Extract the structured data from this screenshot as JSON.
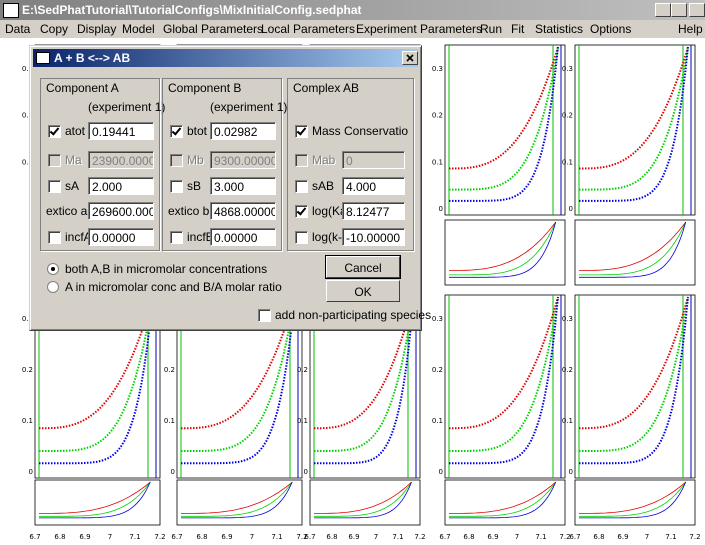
{
  "window": {
    "title": "E:\\SedPhatTutorial\\TutorialConfigs\\MixInitialConfig.sedphat",
    "menu": [
      "Data",
      "Copy",
      "Display",
      "Model",
      "Global Parameters",
      "Local Parameters",
      "Experiment Parameters",
      "Run",
      "Fit",
      "Statistics",
      "Options",
      "Help"
    ]
  },
  "plots": {
    "x_tick_labels": [
      "6.7",
      "6.8",
      "6.9",
      "7",
      "7.1",
      "7.2"
    ],
    "y_tick_labels": [
      "0.3",
      "0.2",
      "0.1",
      "0"
    ]
  },
  "dialog": {
    "title": "A + B <--> AB",
    "groups": [
      {
        "title": "Component A",
        "note": "(experiment 1)",
        "rows": [
          {
            "label": "atot",
            "value": "0.19441",
            "checkbox": true,
            "checked": true,
            "disabled": false
          },
          {
            "label": "Ma",
            "value": "23900.0000",
            "checkbox": true,
            "checked": false,
            "disabled": true
          },
          {
            "label": "sA",
            "value": "2.000",
            "checkbox": true,
            "checked": false,
            "disabled": false
          },
          {
            "label": "extico a",
            "value": "269600.000",
            "checkbox": false,
            "checked": false,
            "disabled": false
          },
          {
            "label": "incfA",
            "value": "0.00000",
            "checkbox": true,
            "checked": false,
            "disabled": false
          }
        ]
      },
      {
        "title": "Component B",
        "note": "(experiment 1)",
        "rows": [
          {
            "label": "btot",
            "value": "0.02982",
            "checkbox": true,
            "checked": true,
            "disabled": false
          },
          {
            "label": "Mb",
            "value": "9300.00000",
            "checkbox": true,
            "checked": false,
            "disabled": true
          },
          {
            "label": "sB",
            "value": "3.000",
            "checkbox": true,
            "checked": false,
            "disabled": false
          },
          {
            "label": "extico b",
            "value": "4868.00000",
            "checkbox": false,
            "checked": false,
            "disabled": false
          },
          {
            "label": "incfB",
            "value": "0.00000",
            "checkbox": true,
            "checked": false,
            "disabled": false
          }
        ]
      },
      {
        "title": "Complex AB",
        "rows": [
          {
            "label": "Mass Conservatio",
            "checkbox": true,
            "checked": true,
            "disabled": false
          },
          {
            "label": "Mab",
            "value": "0",
            "checkbox": true,
            "checked": false,
            "disabled": true
          },
          {
            "label": "sAB",
            "value": "4.000",
            "checkbox": true,
            "checked": false,
            "disabled": false
          },
          {
            "label": "log(Ka)",
            "value": "8.12477",
            "checkbox": true,
            "checked": true,
            "disabled": false
          },
          {
            "label": "log(k-)",
            "value": "-10.00000",
            "checkbox": true,
            "checked": false,
            "disabled": false
          }
        ]
      }
    ],
    "radios": [
      {
        "label": "both A,B in micromolar concentrations",
        "selected": true
      },
      {
        "label": "A in micromolar conc and B/A molar ratio",
        "selected": false
      }
    ],
    "buttons": [
      "Cancel",
      "OK"
    ],
    "extra_option": {
      "label": "add non-participating species",
      "checked": false
    }
  }
}
